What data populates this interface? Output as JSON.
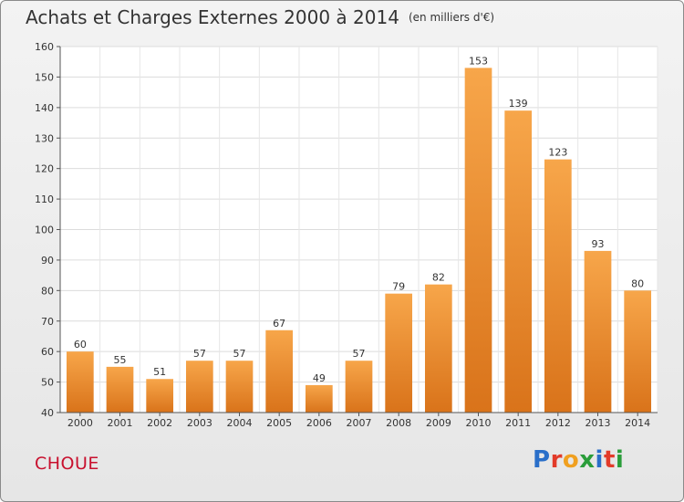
{
  "chart_data": {
    "type": "bar",
    "title": "Achats et Charges Externes 2000 à 2014",
    "unit_note": "(en milliers d'€)",
    "categories": [
      "2000",
      "2001",
      "2002",
      "2003",
      "2004",
      "2005",
      "2006",
      "2007",
      "2008",
      "2009",
      "2010",
      "2011",
      "2012",
      "2013",
      "2014"
    ],
    "values": [
      60,
      55,
      51,
      57,
      57,
      67,
      49,
      57,
      79,
      82,
      153,
      139,
      123,
      93,
      80
    ],
    "ylim": [
      40,
      160
    ],
    "yticks": [
      40,
      50,
      60,
      70,
      80,
      90,
      100,
      110,
      120,
      130,
      140,
      150,
      160
    ],
    "grid": true,
    "bar_color": "#f19a3a",
    "bar_color_dark": "#d9731a"
  },
  "town": "CHOUE",
  "brand": "Proxiti",
  "brand_colors": [
    "#2a6fc9",
    "#e23b2a",
    "#f0a020",
    "#2a9d3a",
    "#2a6fc9",
    "#e23b2a",
    "#2a9d3a"
  ]
}
